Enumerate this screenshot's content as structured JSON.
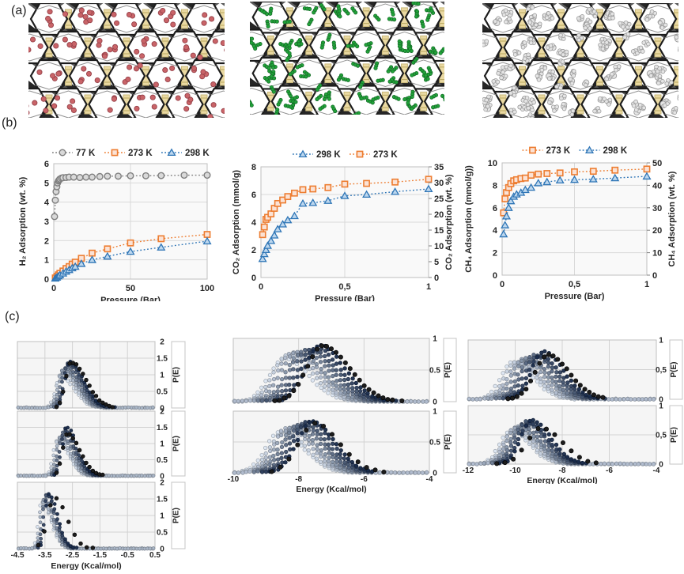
{
  "panels": {
    "a": {
      "label": "(a)"
    },
    "b": {
      "label": "(b)"
    },
    "c": {
      "label": "(c)"
    }
  },
  "structures": [
    {
      "name": "h2-loaded-framework",
      "molecule_color": "#c96468",
      "molecule_stroke": "#97424a",
      "molecule_type": "single"
    },
    {
      "name": "co2-loaded-framework",
      "molecule_color": "#22a33a",
      "molecule_stroke": "#146c27",
      "molecule_type": "triple"
    },
    {
      "name": "ch4-loaded-framework",
      "molecule_color": "#e4e4e4",
      "molecule_stroke": "#9b9b9b",
      "molecule_type": "cluster"
    }
  ],
  "colors": {
    "framework_dark": "#262626",
    "framework_tan": "#ead9a2",
    "orange_marker": "#ed7d31",
    "orange_fill": "#fbe2d5",
    "blue_marker": "#2e75b6",
    "blue_fill": "#bdd7ee",
    "gray_marker": "#7f7f7f",
    "gray_fill": "#d9d9d9",
    "grid": "#d9d9d9",
    "plot_border": "#bfbfbf",
    "text": "#262626"
  },
  "chart_data": [
    {
      "id": "h2_isotherm",
      "type": "scatter",
      "xlabel": "Pressure (Bar)",
      "ylabel_left": "H₂ Adsorption (wt. %)",
      "xlim": [
        0,
        100
      ],
      "ylim_left": [
        0,
        6
      ],
      "x_tick_values": [
        0,
        50,
        100
      ],
      "x_tick_labels": [
        "0",
        "50",
        "100"
      ],
      "y_tick_values": [
        0,
        1,
        2,
        3,
        4,
        5,
        6
      ],
      "y_tick_labels": [
        "0",
        "1",
        "2",
        "3",
        "4",
        "5",
        "6"
      ],
      "legend_position": "top",
      "series": [
        {
          "label": "77 K",
          "marker": "circle",
          "stroke": "#7f7f7f",
          "fill": "#d9d9d9",
          "x": [
            0.5,
            1,
            1.5,
            2,
            2.5,
            3,
            3.5,
            4,
            5,
            6,
            8,
            10,
            13,
            17,
            21,
            25,
            30,
            35,
            42,
            50,
            60,
            70,
            85,
            100
          ],
          "y": [
            3.25,
            4.1,
            4.55,
            4.8,
            5.0,
            5.1,
            5.15,
            5.2,
            5.25,
            5.27,
            5.28,
            5.3,
            5.3,
            5.28,
            5.3,
            5.3,
            5.33,
            5.35,
            5.35,
            5.37,
            5.37,
            5.38,
            5.4,
            5.4
          ]
        },
        {
          "label": "273 K",
          "marker": "square",
          "stroke": "#ed7d31",
          "fill": "#fbe2d5",
          "x": [
            1,
            2,
            3,
            4,
            6,
            8,
            10,
            12,
            14,
            18,
            25,
            35,
            50,
            70,
            100
          ],
          "y": [
            0.06,
            0.14,
            0.22,
            0.3,
            0.42,
            0.55,
            0.65,
            0.78,
            0.88,
            1.08,
            1.35,
            1.57,
            1.88,
            2.1,
            2.32
          ]
        },
        {
          "label": "298 K",
          "marker": "triangle",
          "stroke": "#2e75b6",
          "fill": "#bdd7ee",
          "x": [
            1,
            2,
            3,
            4,
            6,
            8,
            10,
            12,
            14,
            18,
            25,
            35,
            50,
            70,
            100
          ],
          "y": [
            0.04,
            0.09,
            0.15,
            0.21,
            0.3,
            0.4,
            0.48,
            0.57,
            0.65,
            0.8,
            1.0,
            1.18,
            1.43,
            1.65,
            1.97
          ]
        }
      ]
    },
    {
      "id": "co2_isotherm",
      "type": "scatter",
      "xlabel": "Pressure (Bar)",
      "ylabel_left": "CO₂ Adsorption (mmol/g)",
      "ylabel_right": "CO₂ Adsorption (wt. %)",
      "xlim": [
        0,
        1
      ],
      "ylim_left": [
        0,
        8
      ],
      "ylim_right": [
        0,
        35
      ],
      "x_tick_values": [
        0,
        0.5,
        1
      ],
      "x_tick_labels": [
        "0",
        "0,5",
        "1"
      ],
      "y_tick_values": [
        0,
        2,
        4,
        6,
        8
      ],
      "y_tick_labels": [
        "0",
        "2",
        "4",
        "6",
        "8"
      ],
      "y_tick_values_right": [
        0,
        5,
        10,
        15,
        20,
        25,
        30,
        35
      ],
      "y_tick_labels_right": [
        "0",
        "5",
        "10",
        "15",
        "20",
        "25",
        "30",
        "35"
      ],
      "legend_position": "top",
      "series": [
        {
          "label": "298 K",
          "marker": "triangle",
          "stroke": "#2e75b6",
          "fill": "#bdd7ee",
          "x": [
            0.01,
            0.02,
            0.03,
            0.04,
            0.06,
            0.08,
            0.1,
            0.13,
            0.16,
            0.2,
            0.25,
            0.31,
            0.4,
            0.5,
            0.63,
            0.8,
            1.0
          ],
          "y": [
            1.35,
            1.7,
            2.0,
            2.3,
            2.65,
            3.05,
            3.5,
            3.85,
            4.15,
            4.45,
            5.35,
            5.4,
            5.55,
            5.9,
            6.0,
            6.2,
            6.4
          ]
        },
        {
          "label": "273 K",
          "marker": "square",
          "stroke": "#ed7d31",
          "fill": "#fbe2d5",
          "x": [
            0.01,
            0.02,
            0.03,
            0.04,
            0.06,
            0.08,
            0.1,
            0.13,
            0.16,
            0.2,
            0.25,
            0.31,
            0.4,
            0.5,
            0.63,
            0.8,
            1.0
          ],
          "y": [
            3.1,
            3.65,
            4.2,
            4.35,
            4.6,
            5.0,
            5.35,
            5.6,
            5.85,
            6.1,
            6.35,
            6.4,
            6.5,
            6.75,
            6.8,
            6.9,
            7.1
          ]
        }
      ]
    },
    {
      "id": "ch4_isotherm",
      "type": "scatter",
      "xlabel": "Pressure (Bar)",
      "ylabel_left": "CH₄ Adsorption (mmol/g))",
      "ylabel_right": "CH₄ Adsorption (wt. %)",
      "xlim": [
        0,
        1
      ],
      "ylim_left": [
        0,
        10
      ],
      "ylim_right": [
        0,
        50
      ],
      "x_tick_values": [
        0,
        0.5,
        1
      ],
      "x_tick_labels": [
        "0",
        "0,5",
        "1"
      ],
      "y_tick_values": [
        0,
        2,
        4,
        6,
        8,
        10
      ],
      "y_tick_labels": [
        "0",
        "2",
        "4",
        "6",
        "8",
        "10"
      ],
      "y_tick_values_right": [
        0,
        10,
        20,
        30,
        40,
        50
      ],
      "y_tick_labels_right": [
        "0",
        "10",
        "20",
        "30",
        "40",
        "50"
      ],
      "legend_position": "top",
      "series": [
        {
          "label": "273 K",
          "marker": "square",
          "stroke": "#ed7d31",
          "fill": "#fbe2d5",
          "x": [
            0.01,
            0.02,
            0.03,
            0.045,
            0.06,
            0.08,
            0.1,
            0.13,
            0.16,
            0.2,
            0.25,
            0.31,
            0.4,
            0.5,
            0.63,
            0.78,
            1.0
          ],
          "y": [
            5.55,
            6.8,
            7.35,
            7.8,
            8.15,
            8.4,
            8.5,
            8.6,
            8.65,
            8.9,
            9.0,
            9.05,
            9.1,
            9.2,
            9.25,
            9.35,
            9.45
          ]
        },
        {
          "label": "298 K",
          "marker": "triangle",
          "stroke": "#2e75b6",
          "fill": "#bdd7ee",
          "x": [
            0.01,
            0.02,
            0.03,
            0.045,
            0.06,
            0.08,
            0.1,
            0.13,
            0.16,
            0.2,
            0.25,
            0.31,
            0.4,
            0.5,
            0.63,
            0.78,
            1.0
          ],
          "y": [
            3.65,
            4.45,
            5.25,
            6.0,
            6.6,
            7.0,
            7.2,
            7.35,
            7.6,
            7.8,
            8.2,
            8.3,
            8.45,
            8.5,
            8.55,
            8.65,
            8.8
          ]
        }
      ]
    },
    {
      "id": "h2_energy_dist_1",
      "type": "scatter",
      "ylabel": "P(E)",
      "xlabel": "",
      "xlim": [
        -4.5,
        0.5
      ],
      "ylim": [
        0,
        2
      ],
      "y_tick_values": [
        0,
        0.5,
        1,
        1.5,
        2
      ],
      "y_tick_labels": [
        "0",
        "0.5",
        "1",
        "1.5",
        "2"
      ],
      "x_grid_values": [
        -3.5,
        -2.5,
        -1.5,
        -0.5
      ],
      "x_tick_values": [],
      "x_tick_labels": [],
      "dist": {
        "n": 9,
        "p0": -2.95,
        "p1": -2.6,
        "h0": 1.0,
        "h1": 1.42,
        "sL": 0.17,
        "sR": 0.5,
        "black": {
          "p": -2.55,
          "h": 1.38,
          "sL": 0.2,
          "sR": 0.55,
          "sparse": false
        }
      }
    },
    {
      "id": "h2_energy_dist_2",
      "type": "scatter",
      "ylabel": "P(E)",
      "xlabel": "",
      "xlim": [
        -4.5,
        0.5
      ],
      "ylim": [
        0,
        2
      ],
      "y_tick_values": [
        0,
        0.5,
        1,
        1.5,
        2
      ],
      "y_tick_labels": [
        "0",
        "0.5",
        "1",
        "1.5",
        "2"
      ],
      "x_grid_values": [
        -3.5,
        -2.5,
        -1.5,
        -0.5
      ],
      "x_tick_values": [],
      "x_tick_labels": [],
      "dist": {
        "n": 9,
        "p0": -3.05,
        "p1": -2.72,
        "h0": 1.05,
        "h1": 1.5,
        "sL": 0.15,
        "sR": 0.4,
        "black": {
          "p": -2.68,
          "h": 1.3,
          "sL": 0.18,
          "sR": 0.45,
          "sparse": false
        }
      }
    },
    {
      "id": "h2_energy_dist_3",
      "type": "scatter",
      "ylabel": "P(E)",
      "xlabel": "Energy (Kcal/mol)",
      "xlim": [
        -4.5,
        0.5
      ],
      "ylim": [
        0,
        2
      ],
      "y_tick_values": [
        0,
        0.5,
        1,
        1.5,
        2
      ],
      "y_tick_labels": [
        "0",
        "0.5",
        "1",
        "1.5",
        "2"
      ],
      "x_grid_values": [
        -3.5,
        -2.5,
        -1.5,
        -0.5
      ],
      "x_tick_values": [
        -4.5,
        -3.5,
        -2.5,
        -1.5,
        -0.5,
        0.5
      ],
      "x_tick_labels": [
        "-4.5",
        "-3.5",
        "-2.5",
        "-1.5",
        "-0.5",
        "0.5"
      ],
      "dist": {
        "n": 9,
        "p0": -3.62,
        "p1": -3.38,
        "h0": 1.4,
        "h1": 1.68,
        "sL": 0.12,
        "sR": 0.33,
        "black": {
          "p": -3.15,
          "h": 1.55,
          "sL": 0.25,
          "sR": 0.45,
          "sparse": true
        }
      }
    },
    {
      "id": "co2_energy_dist_1",
      "type": "scatter",
      "ylabel": "P(E)",
      "xlabel": "",
      "xlim": [
        -10,
        -4
      ],
      "ylim": [
        0,
        1
      ],
      "y_tick_values": [
        0,
        0.5,
        1
      ],
      "y_tick_labels": [
        "0",
        "0.5",
        "1"
      ],
      "x_grid_values": [
        -8,
        -6
      ],
      "x_tick_values": [],
      "x_tick_labels": [],
      "dist": {
        "n": 10,
        "p0": -8.45,
        "p1": -7.35,
        "h0": 0.7,
        "h1": 0.9,
        "sL": 0.45,
        "sR": 0.75,
        "black": {
          "p": -7.25,
          "h": 0.88,
          "sL": 0.5,
          "sR": 0.8,
          "sparse": false
        }
      }
    },
    {
      "id": "co2_energy_dist_2",
      "type": "scatter",
      "ylabel": "P(E)",
      "xlabel": "Energy (Kcal/mol)",
      "xlim": [
        -10,
        -4
      ],
      "ylim": [
        0,
        1
      ],
      "y_tick_values": [
        0,
        0.5,
        1
      ],
      "y_tick_labels": [
        "0",
        "0.5",
        "1"
      ],
      "x_grid_values": [
        -8,
        -6
      ],
      "x_tick_values": [
        -10,
        -8,
        -6,
        -4
      ],
      "x_tick_labels": [
        "-10",
        "-8",
        "-6",
        "-4"
      ],
      "dist": {
        "n": 10,
        "p0": -8.55,
        "p1": -7.6,
        "h0": 0.66,
        "h1": 0.85,
        "sL": 0.45,
        "sR": 0.7,
        "black": {
          "p": -7.5,
          "h": 0.8,
          "sL": 0.5,
          "sR": 0.75,
          "sparse": true
        }
      }
    },
    {
      "id": "ch4_energy_dist_1",
      "type": "scatter",
      "ylabel": "P(E)",
      "xlabel": "",
      "xlim": [
        -12,
        -4
      ],
      "ylim": [
        0,
        1
      ],
      "y_tick_values": [
        0,
        0.5,
        1
      ],
      "y_tick_labels": [
        "0",
        "0,5",
        "1"
      ],
      "x_grid_values": [
        -10,
        -8,
        -6
      ],
      "x_tick_values": [],
      "x_tick_labels": [],
      "dist": {
        "n": 10,
        "p0": -10.1,
        "p1": -8.8,
        "h0": 0.6,
        "h1": 0.78,
        "sL": 0.5,
        "sR": 0.85,
        "black": {
          "p": -8.6,
          "h": 0.75,
          "sL": 0.55,
          "sR": 0.9,
          "sparse": false
        }
      }
    },
    {
      "id": "ch4_energy_dist_2",
      "type": "scatter",
      "ylabel": "P(E)",
      "xlabel": "Energy (Kcal/mol)",
      "xlim": [
        -12,
        -4
      ],
      "ylim": [
        0,
        1
      ],
      "y_tick_values": [
        0,
        0.5,
        1
      ],
      "y_tick_labels": [
        "0",
        "0,5",
        "1"
      ],
      "x_grid_values": [
        -10,
        -8,
        -6
      ],
      "x_tick_values": [
        -12,
        -10,
        -8,
        -6,
        -4
      ],
      "x_tick_labels": [
        "-12",
        "-10",
        "-8",
        "-6",
        "-4"
      ],
      "dist": {
        "n": 10,
        "p0": -10.2,
        "p1": -9.3,
        "h0": 0.56,
        "h1": 0.75,
        "sL": 0.45,
        "sR": 0.8,
        "black": {
          "p": -8.9,
          "h": 0.62,
          "sL": 0.6,
          "sR": 0.9,
          "sparse": true
        }
      }
    }
  ]
}
